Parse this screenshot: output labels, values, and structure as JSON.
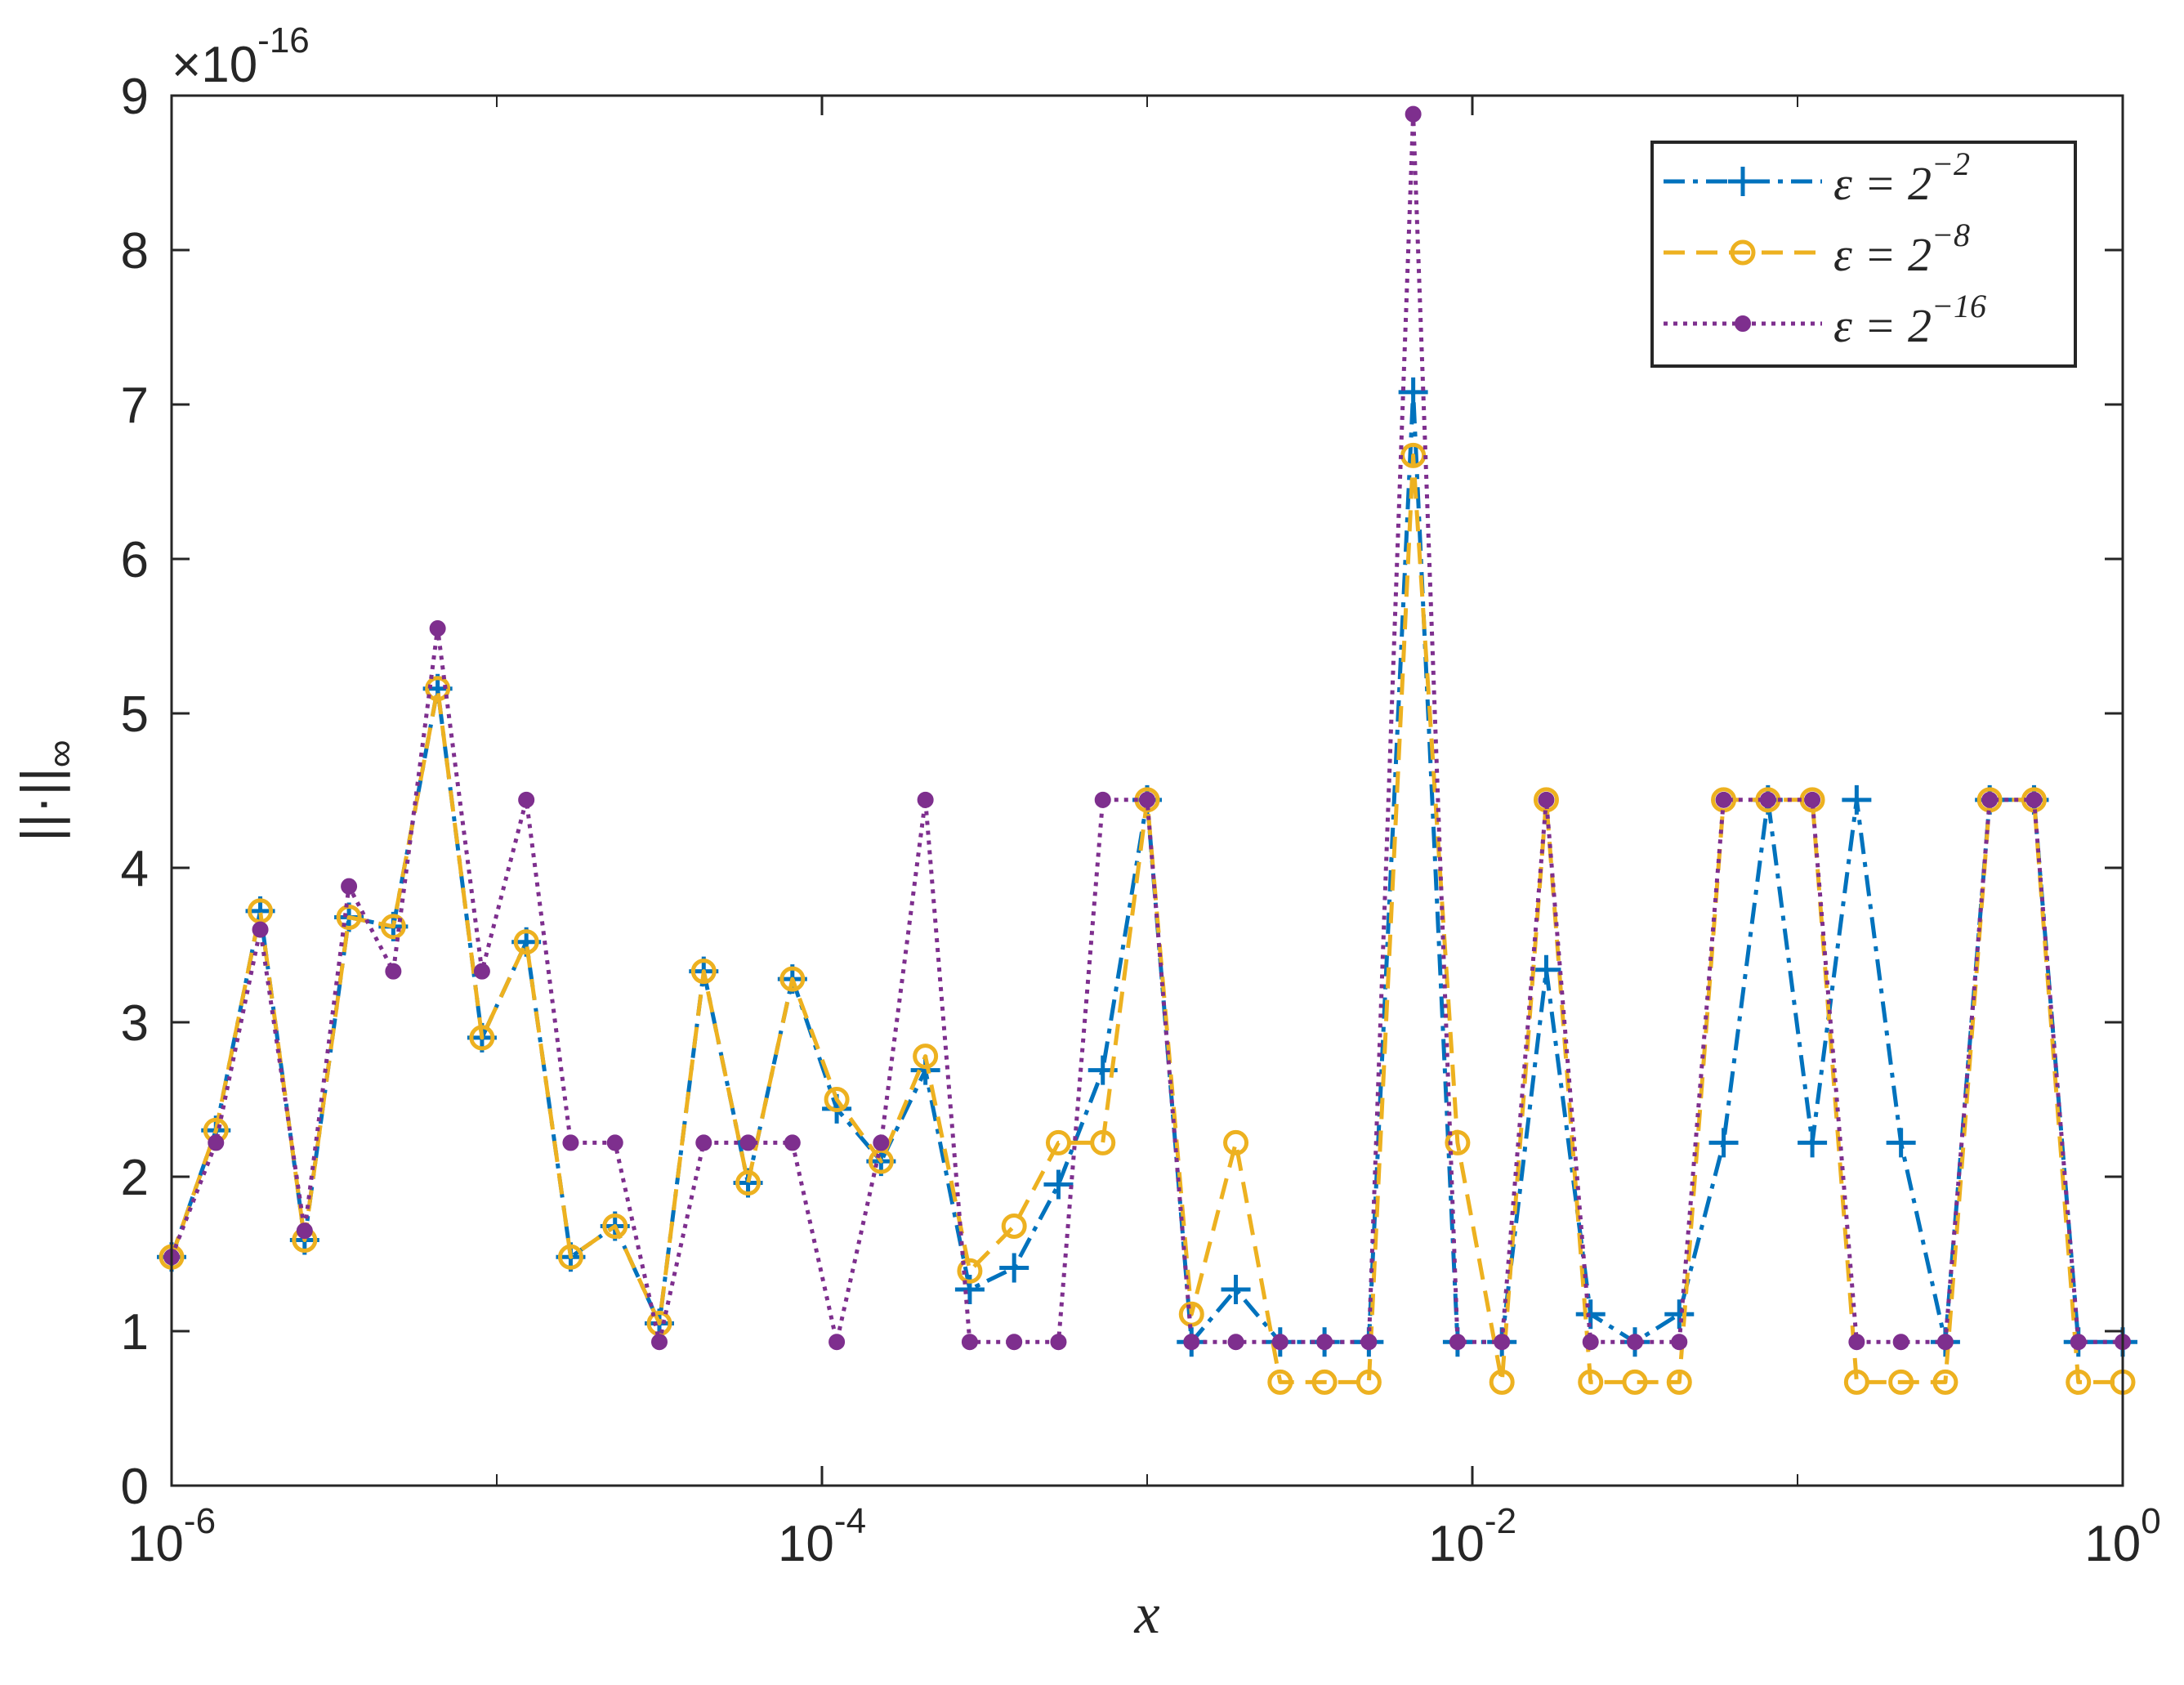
{
  "chart_data": {
    "type": "line",
    "xscale": "log",
    "xlim": [
      1e-06,
      1
    ],
    "ylim": [
      0,
      9
    ],
    "y_multiplier": "×10",
    "y_multiplier_exp": "-16",
    "xlabel": "x",
    "ylabel": "||·||",
    "ylabel_sub": "∞",
    "x_ticks": [
      {
        "value": 1e-06,
        "base": "10",
        "exp": "-6"
      },
      {
        "value": 0.0001,
        "base": "10",
        "exp": "-4"
      },
      {
        "value": 0.01,
        "base": "10",
        "exp": "-2"
      },
      {
        "value": 1,
        "base": "10",
        "exp": "0"
      }
    ],
    "y_ticks": [
      "0",
      "1",
      "2",
      "3",
      "4",
      "5",
      "6",
      "7",
      "8",
      "9"
    ],
    "legend_position": "top-right",
    "series": [
      {
        "name": "ε = 2^-2",
        "legend_prefix": "ε = 2",
        "legend_exp": "−2",
        "color": "#0072BD",
        "marker": "plus",
        "dash": "dashdot",
        "values": [
          1.48,
          2.3,
          3.72,
          1.59,
          3.68,
          3.62,
          5.16,
          2.9,
          3.52,
          1.48,
          1.68,
          1.05,
          3.33,
          1.96,
          3.28,
          2.44,
          2.1,
          2.69,
          1.27,
          1.41,
          1.95,
          2.69,
          4.44,
          0.93,
          1.27,
          0.93,
          0.93,
          0.93,
          7.08,
          0.93,
          0.93,
          3.34,
          1.11,
          0.93,
          1.11,
          2.22,
          4.44,
          2.22,
          4.44,
          2.22,
          0.93,
          4.44,
          4.44,
          0.93,
          0.93
        ]
      },
      {
        "name": "ε = 2^-8",
        "legend_prefix": "ε = 2",
        "legend_exp": "−8",
        "color": "#EDB120",
        "marker": "circle",
        "dash": "dashed",
        "values": [
          1.48,
          2.3,
          3.72,
          1.59,
          3.68,
          3.62,
          5.16,
          2.9,
          3.52,
          1.48,
          1.68,
          1.05,
          3.33,
          1.96,
          3.28,
          2.5,
          2.1,
          2.78,
          1.39,
          1.68,
          2.22,
          2.22,
          4.44,
          1.11,
          2.22,
          0.67,
          0.67,
          0.67,
          6.67,
          2.22,
          0.67,
          4.44,
          0.67,
          0.67,
          0.67,
          4.44,
          4.44,
          4.44,
          0.67,
          0.67,
          0.67,
          4.44,
          4.44,
          0.67,
          0.67
        ]
      },
      {
        "name": "ε = 2^-16",
        "legend_prefix": "ε = 2",
        "legend_exp": "−16",
        "color": "#7E2F8E",
        "marker": "dot",
        "dash": "dotted",
        "values": [
          1.48,
          2.22,
          3.6,
          1.65,
          3.88,
          3.33,
          5.55,
          3.33,
          4.44,
          2.22,
          2.22,
          0.93,
          2.22,
          2.22,
          2.22,
          0.93,
          2.22,
          4.44,
          0.93,
          0.93,
          0.93,
          4.44,
          4.44,
          0.93,
          0.93,
          0.93,
          0.93,
          0.93,
          8.88,
          0.93,
          0.93,
          4.44,
          0.93,
          0.93,
          0.93,
          4.44,
          4.44,
          4.44,
          0.93,
          0.93,
          0.93,
          4.44,
          4.44,
          0.93,
          0.93
        ]
      }
    ]
  }
}
